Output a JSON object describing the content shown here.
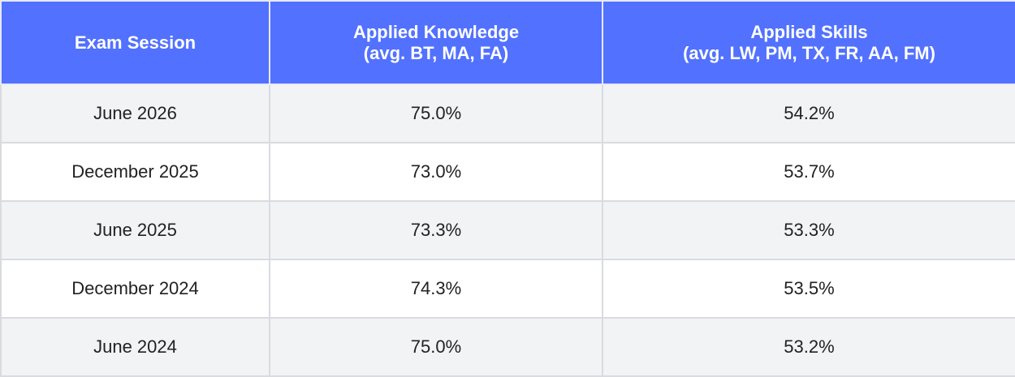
{
  "table": {
    "headers": [
      [
        "Exam Session"
      ],
      [
        "Applied Knowledge",
        "(avg. BT, MA, FA)"
      ],
      [
        "Applied Skills",
        "(avg. LW, PM, TX, FR, AA, FM)"
      ]
    ],
    "rows": [
      [
        "June 2026",
        "75.0%",
        "54.2%"
      ],
      [
        "December 2025",
        "73.0%",
        "53.7%"
      ],
      [
        "June 2025",
        "73.3%",
        "53.3%"
      ],
      [
        "December 2024",
        "74.3%",
        "53.5%"
      ],
      [
        "June 2024",
        "75.0%",
        "53.2%"
      ]
    ]
  }
}
